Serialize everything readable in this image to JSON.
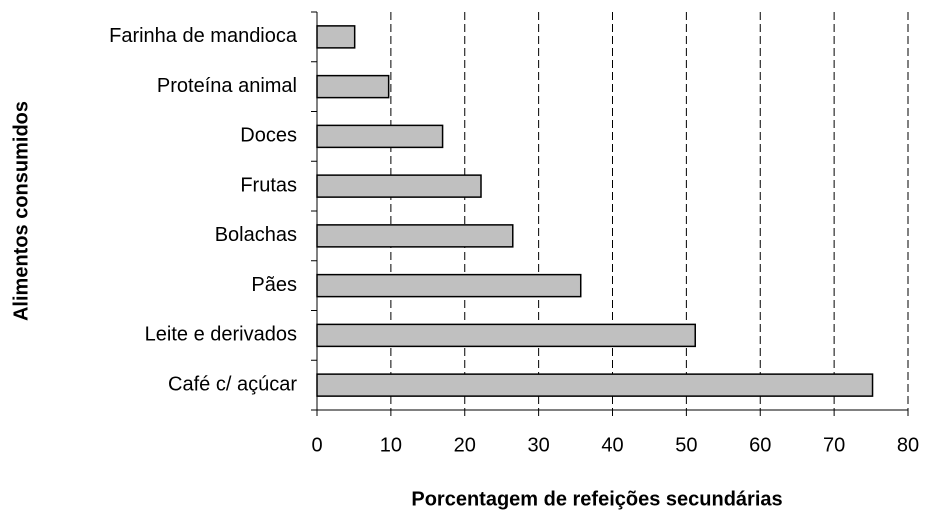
{
  "chart_data": {
    "type": "bar",
    "orientation": "horizontal",
    "xlabel": "Porcentagem de refeições secundárias",
    "ylabel": "Alimentos consumidos",
    "categories": [
      "Farinha de mandioca",
      "Proteína animal",
      "Doces",
      "Frutas",
      "Bolachas",
      "Pães",
      "Leite e derivados",
      "Café c/ açúcar"
    ],
    "values": [
      5.1,
      9.7,
      17.0,
      22.2,
      26.5,
      35.7,
      51.2,
      75.2
    ],
    "color": "#c0c0c0",
    "xlim": [
      0,
      80
    ],
    "xticks": [
      0,
      10,
      20,
      30,
      40,
      50,
      60,
      70,
      80
    ],
    "grid": true
  }
}
